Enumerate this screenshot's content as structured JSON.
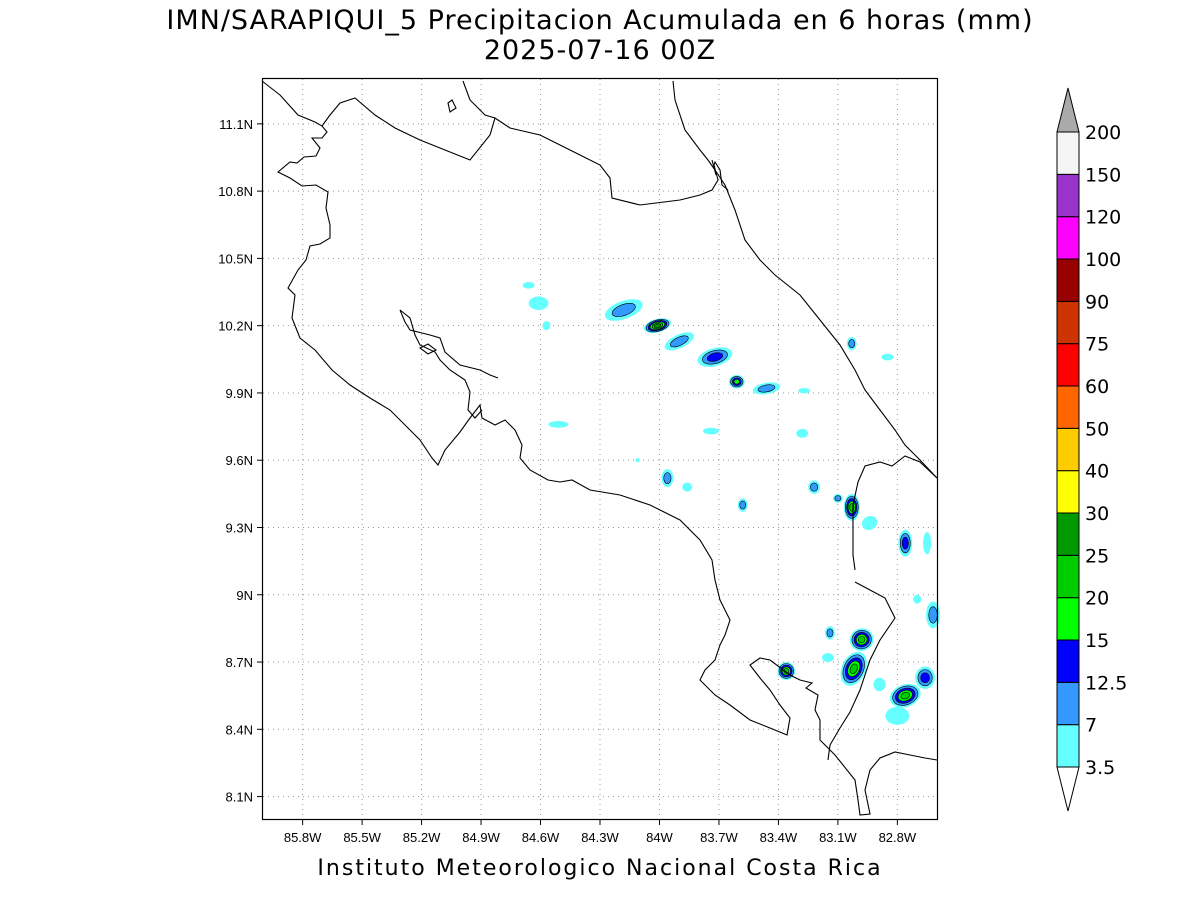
{
  "title": {
    "line1": "IMN/SARAPIQUI_5 Precipitacion Acumulada en 6 horas (mm)",
    "line2": "2025-07-16 00Z"
  },
  "footer": "Instituto Meteorologico Nacional Costa Rica",
  "map": {
    "lon_range": [
      -86.0,
      -82.6
    ],
    "lat_range": [
      8.0,
      11.3
    ],
    "lon_ticks": [
      {
        "value": -85.8,
        "label": "85.8W"
      },
      {
        "value": -85.5,
        "label": "85.5W"
      },
      {
        "value": -85.2,
        "label": "85.2W"
      },
      {
        "value": -84.9,
        "label": "84.9W"
      },
      {
        "value": -84.6,
        "label": "84.6W"
      },
      {
        "value": -84.3,
        "label": "84.3W"
      },
      {
        "value": -84.0,
        "label": "84W"
      },
      {
        "value": -83.7,
        "label": "83.7W"
      },
      {
        "value": -83.4,
        "label": "83.4W"
      },
      {
        "value": -83.1,
        "label": "83.1W"
      },
      {
        "value": -82.8,
        "label": "82.8W"
      }
    ],
    "lat_ticks": [
      {
        "value": 8.1,
        "label": "8.1N"
      },
      {
        "value": 8.4,
        "label": "8.4N"
      },
      {
        "value": 8.7,
        "label": "8.7N"
      },
      {
        "value": 9.0,
        "label": "9N"
      },
      {
        "value": 9.3,
        "label": "9.3N"
      },
      {
        "value": 9.6,
        "label": "9.6N"
      },
      {
        "value": 9.9,
        "label": "9.9N"
      },
      {
        "value": 10.2,
        "label": "10.2N"
      },
      {
        "value": 10.5,
        "label": "10.5N"
      },
      {
        "value": 10.8,
        "label": "10.8N"
      },
      {
        "value": 11.1,
        "label": "11.1N"
      }
    ],
    "grid": true,
    "precip_cells": [
      {
        "lon": -84.01,
        "lat": 10.2,
        "rx": 0.07,
        "ry": 0.03,
        "rot": -15,
        "value": 25
      },
      {
        "lon": -84.18,
        "lat": 10.27,
        "rx": 0.1,
        "ry": 0.04,
        "rot": -20,
        "value": 7
      },
      {
        "lon": -83.9,
        "lat": 10.13,
        "rx": 0.08,
        "ry": 0.03,
        "rot": -25,
        "value": 7
      },
      {
        "lon": -83.72,
        "lat": 10.06,
        "rx": 0.09,
        "ry": 0.04,
        "rot": -15,
        "value": 12.5
      },
      {
        "lon": -83.61,
        "lat": 9.95,
        "rx": 0.04,
        "ry": 0.03,
        "rot": 0,
        "value": 15
      },
      {
        "lon": -83.46,
        "lat": 9.92,
        "rx": 0.07,
        "ry": 0.025,
        "rot": -10,
        "value": 7
      },
      {
        "lon": -84.61,
        "lat": 10.3,
        "rx": 0.05,
        "ry": 0.03,
        "rot": 0,
        "value": 3.5
      },
      {
        "lon": -84.57,
        "lat": 10.2,
        "rx": 0.02,
        "ry": 0.02,
        "rot": 0,
        "value": 3.5
      },
      {
        "lon": -84.66,
        "lat": 10.38,
        "rx": 0.03,
        "ry": 0.015,
        "rot": 0,
        "value": 3.5
      },
      {
        "lon": -83.27,
        "lat": 9.91,
        "rx": 0.03,
        "ry": 0.012,
        "rot": 0,
        "value": 3.5
      },
      {
        "lon": -83.28,
        "lat": 9.72,
        "rx": 0.03,
        "ry": 0.02,
        "rot": 0,
        "value": 3.5
      },
      {
        "lon": -83.03,
        "lat": 10.12,
        "rx": 0.025,
        "ry": 0.03,
        "rot": 0,
        "value": 7
      },
      {
        "lon": -82.85,
        "lat": 10.06,
        "rx": 0.03,
        "ry": 0.015,
        "rot": 0,
        "value": 3.5
      },
      {
        "lon": -84.51,
        "lat": 9.76,
        "rx": 0.05,
        "ry": 0.015,
        "rot": 0,
        "value": 3.5
      },
      {
        "lon": -83.74,
        "lat": 9.73,
        "rx": 0.04,
        "ry": 0.015,
        "rot": 0,
        "value": 3.5
      },
      {
        "lon": -83.96,
        "lat": 9.52,
        "rx": 0.03,
        "ry": 0.04,
        "rot": 0,
        "value": 7
      },
      {
        "lon": -83.86,
        "lat": 9.48,
        "rx": 0.025,
        "ry": 0.02,
        "rot": 0,
        "value": 3.5
      },
      {
        "lon": -84.11,
        "lat": 9.6,
        "rx": 0.01,
        "ry": 0.01,
        "rot": 0,
        "value": 3.5
      },
      {
        "lon": -83.58,
        "lat": 9.4,
        "rx": 0.025,
        "ry": 0.03,
        "rot": 0,
        "value": 7
      },
      {
        "lon": -83.22,
        "lat": 9.48,
        "rx": 0.03,
        "ry": 0.03,
        "rot": 0,
        "value": 7
      },
      {
        "lon": -83.03,
        "lat": 9.39,
        "rx": 0.04,
        "ry": 0.06,
        "rot": 0,
        "value": 20
      },
      {
        "lon": -83.1,
        "lat": 9.43,
        "rx": 0.025,
        "ry": 0.02,
        "rot": 0,
        "value": 7
      },
      {
        "lon": -82.94,
        "lat": 9.32,
        "rx": 0.04,
        "ry": 0.03,
        "rot": -30,
        "value": 3.5
      },
      {
        "lon": -82.76,
        "lat": 9.23,
        "rx": 0.035,
        "ry": 0.06,
        "rot": 0,
        "value": 12.5
      },
      {
        "lon": -82.65,
        "lat": 9.23,
        "rx": 0.02,
        "ry": 0.05,
        "rot": 0,
        "value": 3.5
      },
      {
        "lon": -82.62,
        "lat": 8.91,
        "rx": 0.035,
        "ry": 0.06,
        "rot": 0,
        "value": 7
      },
      {
        "lon": -82.7,
        "lat": 8.98,
        "rx": 0.02,
        "ry": 0.02,
        "rot": 0,
        "value": 3.5
      },
      {
        "lon": -82.98,
        "lat": 8.8,
        "rx": 0.06,
        "ry": 0.05,
        "rot": -20,
        "value": 20
      },
      {
        "lon": -83.02,
        "lat": 8.67,
        "rx": 0.06,
        "ry": 0.08,
        "rot": 25,
        "value": 20
      },
      {
        "lon": -83.14,
        "lat": 8.83,
        "rx": 0.025,
        "ry": 0.03,
        "rot": 0,
        "value": 7
      },
      {
        "lon": -83.15,
        "lat": 8.72,
        "rx": 0.03,
        "ry": 0.02,
        "rot": 0,
        "value": 3.5
      },
      {
        "lon": -83.36,
        "lat": 8.66,
        "rx": 0.045,
        "ry": 0.04,
        "rot": 0,
        "value": 20
      },
      {
        "lon": -82.76,
        "lat": 8.55,
        "rx": 0.08,
        "ry": 0.05,
        "rot": -20,
        "value": 20
      },
      {
        "lon": -82.66,
        "lat": 8.63,
        "rx": 0.05,
        "ry": 0.05,
        "rot": 0,
        "value": 12.5
      },
      {
        "lon": -82.8,
        "lat": 8.46,
        "rx": 0.06,
        "ry": 0.04,
        "rot": 0,
        "value": 3.5
      },
      {
        "lon": -82.89,
        "lat": 8.6,
        "rx": 0.03,
        "ry": 0.03,
        "rot": 0,
        "value": 3.5
      }
    ]
  },
  "colorbar": {
    "levels": [
      {
        "label": "3.5",
        "color": "#66ffff"
      },
      {
        "label": "7",
        "color": "#3399ff"
      },
      {
        "label": "12.5",
        "color": "#0000ff"
      },
      {
        "label": "15",
        "color": "#00ff00"
      },
      {
        "label": "20",
        "color": "#00cc00"
      },
      {
        "label": "25",
        "color": "#009900"
      },
      {
        "label": "30",
        "color": "#ffff00"
      },
      {
        "label": "40",
        "color": "#ffcc00"
      },
      {
        "label": "50",
        "color": "#ff6600"
      },
      {
        "label": "60",
        "color": "#ff0000"
      },
      {
        "label": "75",
        "color": "#cc3300"
      },
      {
        "label": "90",
        "color": "#990000"
      },
      {
        "label": "100",
        "color": "#ff00ff"
      },
      {
        "label": "120",
        "color": "#9933cc"
      },
      {
        "label": "150",
        "color": "#f5f5f5"
      },
      {
        "label": "200",
        "color": "#aaaaaa"
      }
    ],
    "under_color": "#ffffff",
    "over_color": "#aaaaaa"
  }
}
